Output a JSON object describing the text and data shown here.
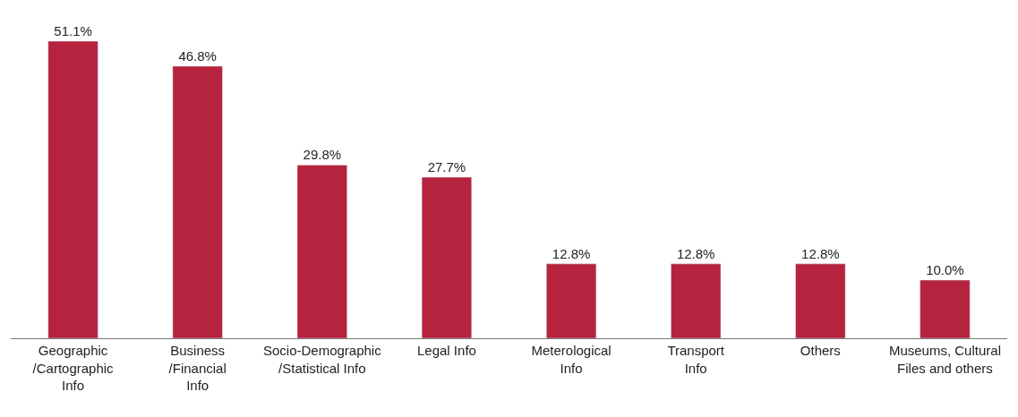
{
  "chart_data": {
    "type": "bar",
    "categories": [
      "Geographic\n/Cartographic\nInfo",
      "Business\n/Financial\nInfo",
      "Socio-Demographic\n/Statistical Info",
      "Legal Info",
      "Meterological\nInfo",
      "Transport\nInfo",
      "Others",
      "Museums, Cultural\nFiles and others"
    ],
    "values": [
      51.1,
      46.8,
      29.8,
      27.7,
      12.8,
      12.8,
      12.8,
      10.0
    ],
    "value_labels": [
      "51.1%",
      "46.8%",
      "29.8%",
      "27.7%",
      "12.8%",
      "12.8%",
      "12.8%",
      "10.0%"
    ],
    "color": "#b5233f"
  }
}
